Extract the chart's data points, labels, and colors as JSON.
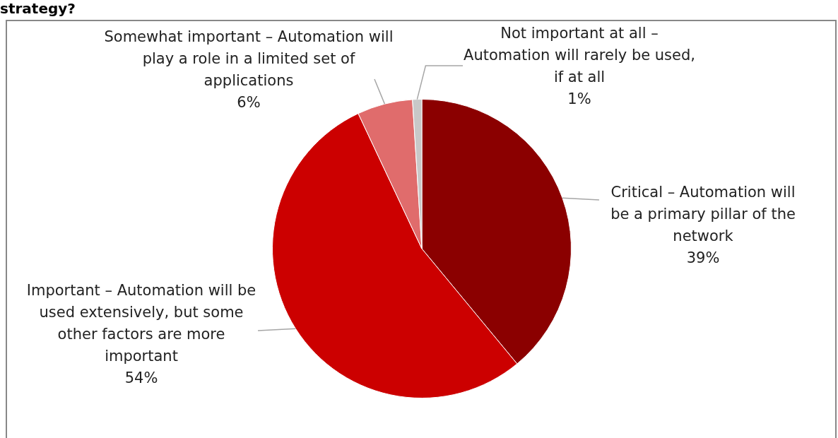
{
  "chart_data": {
    "type": "pie",
    "title": "strategy?",
    "categories": [
      "Critical – Automation will be a primary pillar of the network",
      "Important – Automation will be used extensively, but some other factors are more important",
      "Somewhat important – Automation will play a role in a limited set of applications",
      "Not important at all – Automation will rarely be used, if at all"
    ],
    "values": [
      39,
      54,
      6,
      1
    ],
    "colors": [
      "#8b0000",
      "#cc0000",
      "#e06c6c",
      "#c8c8c8"
    ],
    "value_labels": [
      "39%",
      "54%",
      "6%",
      "1%"
    ],
    "legend": false
  }
}
